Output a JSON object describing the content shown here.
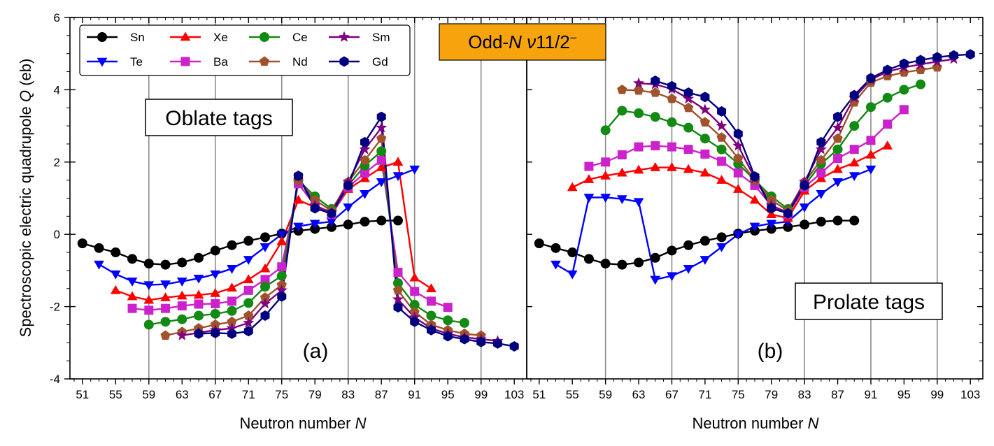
{
  "chart_data": {
    "type": "line",
    "ylabel_prefix": "Spectroscopic electric quadrupole ",
    "ylabel_var": "Q",
    "ylabel_unit": " (eb)",
    "xlabel_prefix": "Neutron number ",
    "xlabel_var": "N",
    "ylim": [
      -4,
      6
    ],
    "yticks": [
      -4,
      -2,
      0,
      2,
      4,
      6
    ],
    "xlim": [
      49.5,
      104.5
    ],
    "xticks": [
      51,
      55,
      59,
      63,
      67,
      71,
      75,
      79,
      83,
      87,
      91,
      95,
      99,
      103
    ],
    "xtick_labels": [
      "51",
      "55",
      "59",
      "63",
      "67",
      "71",
      "75",
      "79",
      "83",
      "87",
      "91",
      "95",
      "99",
      "103"
    ],
    "vertical_gridlines": [
      59,
      67,
      75,
      83,
      91,
      99
    ],
    "state_label": {
      "prefix": "Odd-",
      "var_n": "N",
      "nu": " ν",
      "spin": "11/2",
      "parity": "−",
      "background": "#f7a30e"
    },
    "legend": {
      "entries": [
        {
          "name": "Sn",
          "color": "#000000",
          "marker": "circle"
        },
        {
          "name": "Xe",
          "color": "#ff0000",
          "marker": "triangle-up"
        },
        {
          "name": "Ce",
          "color": "#138a13",
          "marker": "circle"
        },
        {
          "name": "Sm",
          "color": "#800080",
          "marker": "star"
        },
        {
          "name": "Te",
          "color": "#0000ff",
          "marker": "triangle-down"
        },
        {
          "name": "Ba",
          "color": "#cc22cc",
          "marker": "square"
        },
        {
          "name": "Nd",
          "color": "#a0522d",
          "marker": "pentagon"
        },
        {
          "name": "Gd",
          "color": "#00007f",
          "marker": "hexagon"
        }
      ]
    },
    "panels": [
      {
        "id": "a",
        "label": "(a)",
        "tag": "Oblate tags",
        "series": [
          {
            "name": "Sn",
            "x": [
              51,
              53,
              55,
              57,
              59,
              61,
              63,
              65,
              67,
              69,
              71,
              73,
              75,
              77,
              79,
              81,
              83,
              85,
              87,
              89
            ],
            "y": [
              -0.25,
              -0.38,
              -0.5,
              -0.68,
              -0.81,
              -0.84,
              -0.78,
              -0.65,
              -0.45,
              -0.3,
              -0.18,
              -0.08,
              0.02,
              0.1,
              0.15,
              0.2,
              0.27,
              0.35,
              0.38,
              0.38
            ]
          },
          {
            "name": "Te",
            "x": [
              53,
              55,
              57,
              59,
              61,
              63,
              65,
              67,
              69,
              71,
              73,
              75,
              77,
              79,
              81,
              83,
              85,
              87,
              89,
              91
            ],
            "y": [
              -0.83,
              -1.1,
              -1.3,
              -1.4,
              -1.38,
              -1.3,
              -1.22,
              -1.1,
              -0.95,
              -0.7,
              -0.35,
              0.0,
              0.22,
              0.3,
              0.35,
              0.75,
              1.12,
              1.45,
              1.62,
              1.8
            ]
          },
          {
            "name": "Xe",
            "x": [
              55,
              57,
              59,
              61,
              63,
              65,
              67,
              69,
              71,
              73,
              75,
              77,
              79,
              81,
              83,
              85,
              87,
              89,
              91,
              93
            ],
            "y": [
              -1.55,
              -1.72,
              -1.82,
              -1.75,
              -1.7,
              -1.68,
              -1.63,
              -1.48,
              -1.25,
              -0.95,
              -0.2,
              0.95,
              0.75,
              0.55,
              1.25,
              1.55,
              1.85,
              2.0,
              -1.2,
              -1.5
            ]
          },
          {
            "name": "Ba",
            "x": [
              57,
              59,
              61,
              63,
              65,
              67,
              69,
              71,
              73,
              75,
              77,
              79,
              81,
              83,
              85,
              87,
              89,
              91,
              93,
              95
            ],
            "y": [
              -2.05,
              -2.1,
              -2.05,
              -1.98,
              -1.93,
              -1.92,
              -1.85,
              -1.55,
              -1.25,
              -0.9,
              1.4,
              0.8,
              0.55,
              1.3,
              1.7,
              2.05,
              -1.05,
              -1.58,
              -1.85,
              -2.02
            ]
          },
          {
            "name": "Ce",
            "x": [
              59,
              61,
              63,
              65,
              67,
              69,
              71,
              73,
              75,
              77,
              79,
              81,
              83,
              85,
              87,
              89,
              91,
              93,
              95,
              97
            ],
            "y": [
              -2.5,
              -2.42,
              -2.35,
              -2.25,
              -2.2,
              -2.12,
              -1.9,
              -1.45,
              -1.15,
              1.5,
              1.05,
              0.7,
              1.35,
              1.9,
              2.3,
              -1.35,
              -1.95,
              -2.25,
              -2.38,
              -2.45
            ]
          },
          {
            "name": "Nd",
            "x": [
              61,
              63,
              65,
              67,
              69,
              71,
              73,
              75,
              77,
              79,
              81,
              83,
              85,
              87,
              89,
              91,
              93,
              95,
              97,
              99
            ],
            "y": [
              -2.8,
              -2.7,
              -2.6,
              -2.5,
              -2.42,
              -2.25,
              -1.75,
              -1.4,
              1.5,
              0.95,
              0.65,
              1.45,
              2.05,
              2.65,
              -1.55,
              -2.15,
              -2.5,
              -2.65,
              -2.75,
              -2.8
            ]
          },
          {
            "name": "Sm",
            "x": [
              63,
              65,
              67,
              69,
              71,
              73,
              75,
              77,
              79,
              81,
              83,
              85,
              87,
              89,
              91,
              93,
              95,
              97,
              99,
              101
            ],
            "y": [
              -2.8,
              -2.72,
              -2.65,
              -2.6,
              -2.45,
              -1.92,
              -1.55,
              1.6,
              0.8,
              0.6,
              1.45,
              2.35,
              2.95,
              -1.8,
              -2.3,
              -2.6,
              -2.75,
              -2.85,
              -2.9,
              -2.95
            ]
          },
          {
            "name": "Gd",
            "x": [
              65,
              67,
              69,
              71,
              73,
              75,
              77,
              79,
              81,
              83,
              85,
              87,
              89,
              91,
              93,
              95,
              97,
              99,
              101,
              103
            ],
            "y": [
              -2.75,
              -2.73,
              -2.75,
              -2.68,
              -2.25,
              -1.72,
              1.62,
              0.72,
              0.58,
              1.35,
              2.55,
              3.25,
              -2.02,
              -2.42,
              -2.65,
              -2.82,
              -2.9,
              -2.98,
              -3.02,
              -3.1
            ]
          }
        ]
      },
      {
        "id": "b",
        "label": "(b)",
        "tag": "Prolate tags",
        "series": [
          {
            "name": "Sn",
            "x": [
              51,
              53,
              55,
              57,
              59,
              61,
              63,
              65,
              67,
              69,
              71,
              73,
              75,
              77,
              79,
              81,
              83,
              85,
              87,
              89
            ],
            "y": [
              -0.25,
              -0.38,
              -0.5,
              -0.68,
              -0.81,
              -0.84,
              -0.78,
              -0.65,
              -0.45,
              -0.3,
              -0.18,
              -0.08,
              0.02,
              0.1,
              0.15,
              0.2,
              0.27,
              0.35,
              0.38,
              0.38
            ]
          },
          {
            "name": "Te",
            "x": [
              53,
              55,
              57,
              59,
              61,
              63,
              65,
              67,
              69,
              71,
              73,
              75,
              77,
              79,
              81,
              83,
              85,
              87,
              89,
              91
            ],
            "y": [
              -0.83,
              -1.1,
              1.02,
              1.02,
              0.98,
              0.9,
              -1.25,
              -1.15,
              -0.95,
              -0.7,
              -0.35,
              0.0,
              0.22,
              0.3,
              0.35,
              0.75,
              1.12,
              1.45,
              1.62,
              1.8
            ]
          },
          {
            "name": "Xe",
            "x": [
              55,
              57,
              59,
              61,
              63,
              65,
              67,
              69,
              71,
              73,
              75,
              77,
              79,
              81,
              83,
              85,
              87,
              89,
              91,
              93
            ],
            "y": [
              1.3,
              1.52,
              1.62,
              1.7,
              1.78,
              1.85,
              1.85,
              1.8,
              1.7,
              1.5,
              1.25,
              0.95,
              0.55,
              0.45,
              1.2,
              1.55,
              1.8,
              1.98,
              2.2,
              2.45
            ]
          },
          {
            "name": "Ba",
            "x": [
              57,
              59,
              61,
              63,
              65,
              67,
              69,
              71,
              73,
              75,
              77,
              79,
              81,
              83,
              85,
              87,
              89,
              91,
              93,
              95
            ],
            "y": [
              1.88,
              2.0,
              2.2,
              2.42,
              2.45,
              2.42,
              2.35,
              2.22,
              2.02,
              1.7,
              1.35,
              0.8,
              0.55,
              1.3,
              1.7,
              2.1,
              2.35,
              2.6,
              3.05,
              3.45
            ]
          },
          {
            "name": "Ce",
            "x": [
              59,
              61,
              63,
              65,
              67,
              69,
              71,
              73,
              75,
              77,
              79,
              81,
              83,
              85,
              87,
              89,
              91,
              93,
              95,
              97
            ],
            "y": [
              2.88,
              3.42,
              3.35,
              3.25,
              3.1,
              2.95,
              2.65,
              2.35,
              1.95,
              1.5,
              1.05,
              0.7,
              1.35,
              1.95,
              2.35,
              3.0,
              3.52,
              3.78,
              4.0,
              4.15
            ]
          },
          {
            "name": "Nd",
            "x": [
              61,
              63,
              65,
              67,
              69,
              71,
              73,
              75,
              77,
              79,
              81,
              83,
              85,
              87,
              89,
              91,
              93,
              95,
              97,
              99
            ],
            "y": [
              4.0,
              3.98,
              3.92,
              3.75,
              3.5,
              3.1,
              2.68,
              2.1,
              1.5,
              0.95,
              0.65,
              1.45,
              2.05,
              2.65,
              3.65,
              4.2,
              4.38,
              4.48,
              4.55,
              4.62
            ]
          },
          {
            "name": "Sm",
            "x": [
              63,
              65,
              67,
              69,
              71,
              73,
              75,
              77,
              79,
              81,
              83,
              85,
              87,
              89,
              91,
              93,
              95,
              97,
              99,
              101
            ],
            "y": [
              4.18,
              4.15,
              4.02,
              3.75,
              3.45,
              3.0,
              2.45,
              1.55,
              0.8,
              0.6,
              1.45,
              2.35,
              2.95,
              3.78,
              4.28,
              4.5,
              4.62,
              4.7,
              4.78,
              4.85
            ]
          },
          {
            "name": "Gd",
            "x": [
              65,
              67,
              69,
              71,
              73,
              75,
              77,
              79,
              81,
              83,
              85,
              87,
              89,
              91,
              93,
              95,
              97,
              99,
              101,
              103
            ],
            "y": [
              4.25,
              4.1,
              3.92,
              3.8,
              3.4,
              2.78,
              1.6,
              0.72,
              0.58,
              1.35,
              2.55,
              3.25,
              3.85,
              4.32,
              4.55,
              4.72,
              4.82,
              4.9,
              4.95,
              4.98
            ]
          }
        ]
      }
    ]
  }
}
